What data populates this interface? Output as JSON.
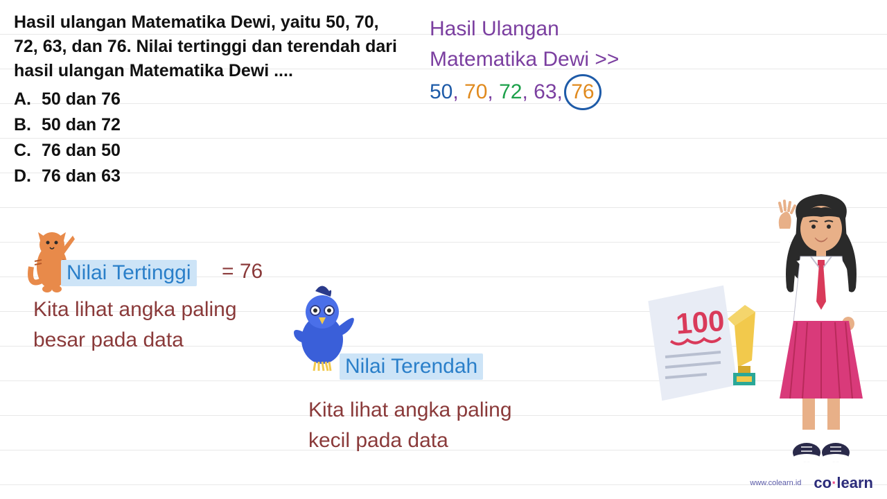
{
  "question": {
    "text": "Hasil ulangan Matematika Dewi, yaitu 50, 70, 72, 63, dan 76. Nilai tertinggi dan terendah dari hasil ulangan Matematika Dewi ....",
    "options": [
      {
        "letter": "A.",
        "text": "50 dan 76"
      },
      {
        "letter": "B.",
        "text": "50 dan 72"
      },
      {
        "letter": "C.",
        "text": "76 dan 50"
      },
      {
        "letter": "D.",
        "text": "76 dan 63"
      }
    ]
  },
  "answer": {
    "title_line1": "Hasil Ulangan",
    "title_line2": "Matematika Dewi >>",
    "scores": [
      {
        "value": "50",
        "color": "#1e5ba8"
      },
      {
        "value": "70",
        "color": "#e08a1e"
      },
      {
        "value": "72",
        "color": "#1ca04a"
      },
      {
        "value": "63",
        "color": "#7b3fa0"
      },
      {
        "value": "76",
        "color": "#e08a1e",
        "circled": true
      }
    ],
    "separator_color": "#7b3fa0"
  },
  "highlights": {
    "tertinggi_label": "Nilai Tertinggi",
    "tertinggi_value": "= 76",
    "tertinggi_desc": "Kita lihat angka paling besar pada data",
    "terendah_label": "Nilai Terendah",
    "terendah_desc": "Kita lihat angka paling kecil pada data"
  },
  "colors": {
    "highlight_bg": "#cde4f7",
    "highlight_text": "#2a7fc9",
    "desc_text": "#8a3a3a",
    "title_purple": "#7b3fa0",
    "circle_stroke": "#1e5ba8"
  },
  "illustrations": {
    "cat": {
      "body": "#e88a4a",
      "stripes": "#b85a2a"
    },
    "bird": {
      "body": "#3a5fd9",
      "beak": "#f2c94c",
      "glasses": "#2a3a8a"
    },
    "student": {
      "shirt": "#ffffff",
      "tie": "#d93a5a",
      "skirt": "#d93a7a",
      "hair": "#2a2a2a",
      "shoes": "#2a2a4a"
    },
    "paper": {
      "bg": "#e8ecf5",
      "score_text": "100",
      "score_color": "#d93a5a"
    },
    "trophy": {
      "color": "#f2c94c"
    }
  },
  "footer": {
    "url": "www.colearn.id",
    "logo_before": "co",
    "logo_dot": "·",
    "logo_after": "learn"
  }
}
